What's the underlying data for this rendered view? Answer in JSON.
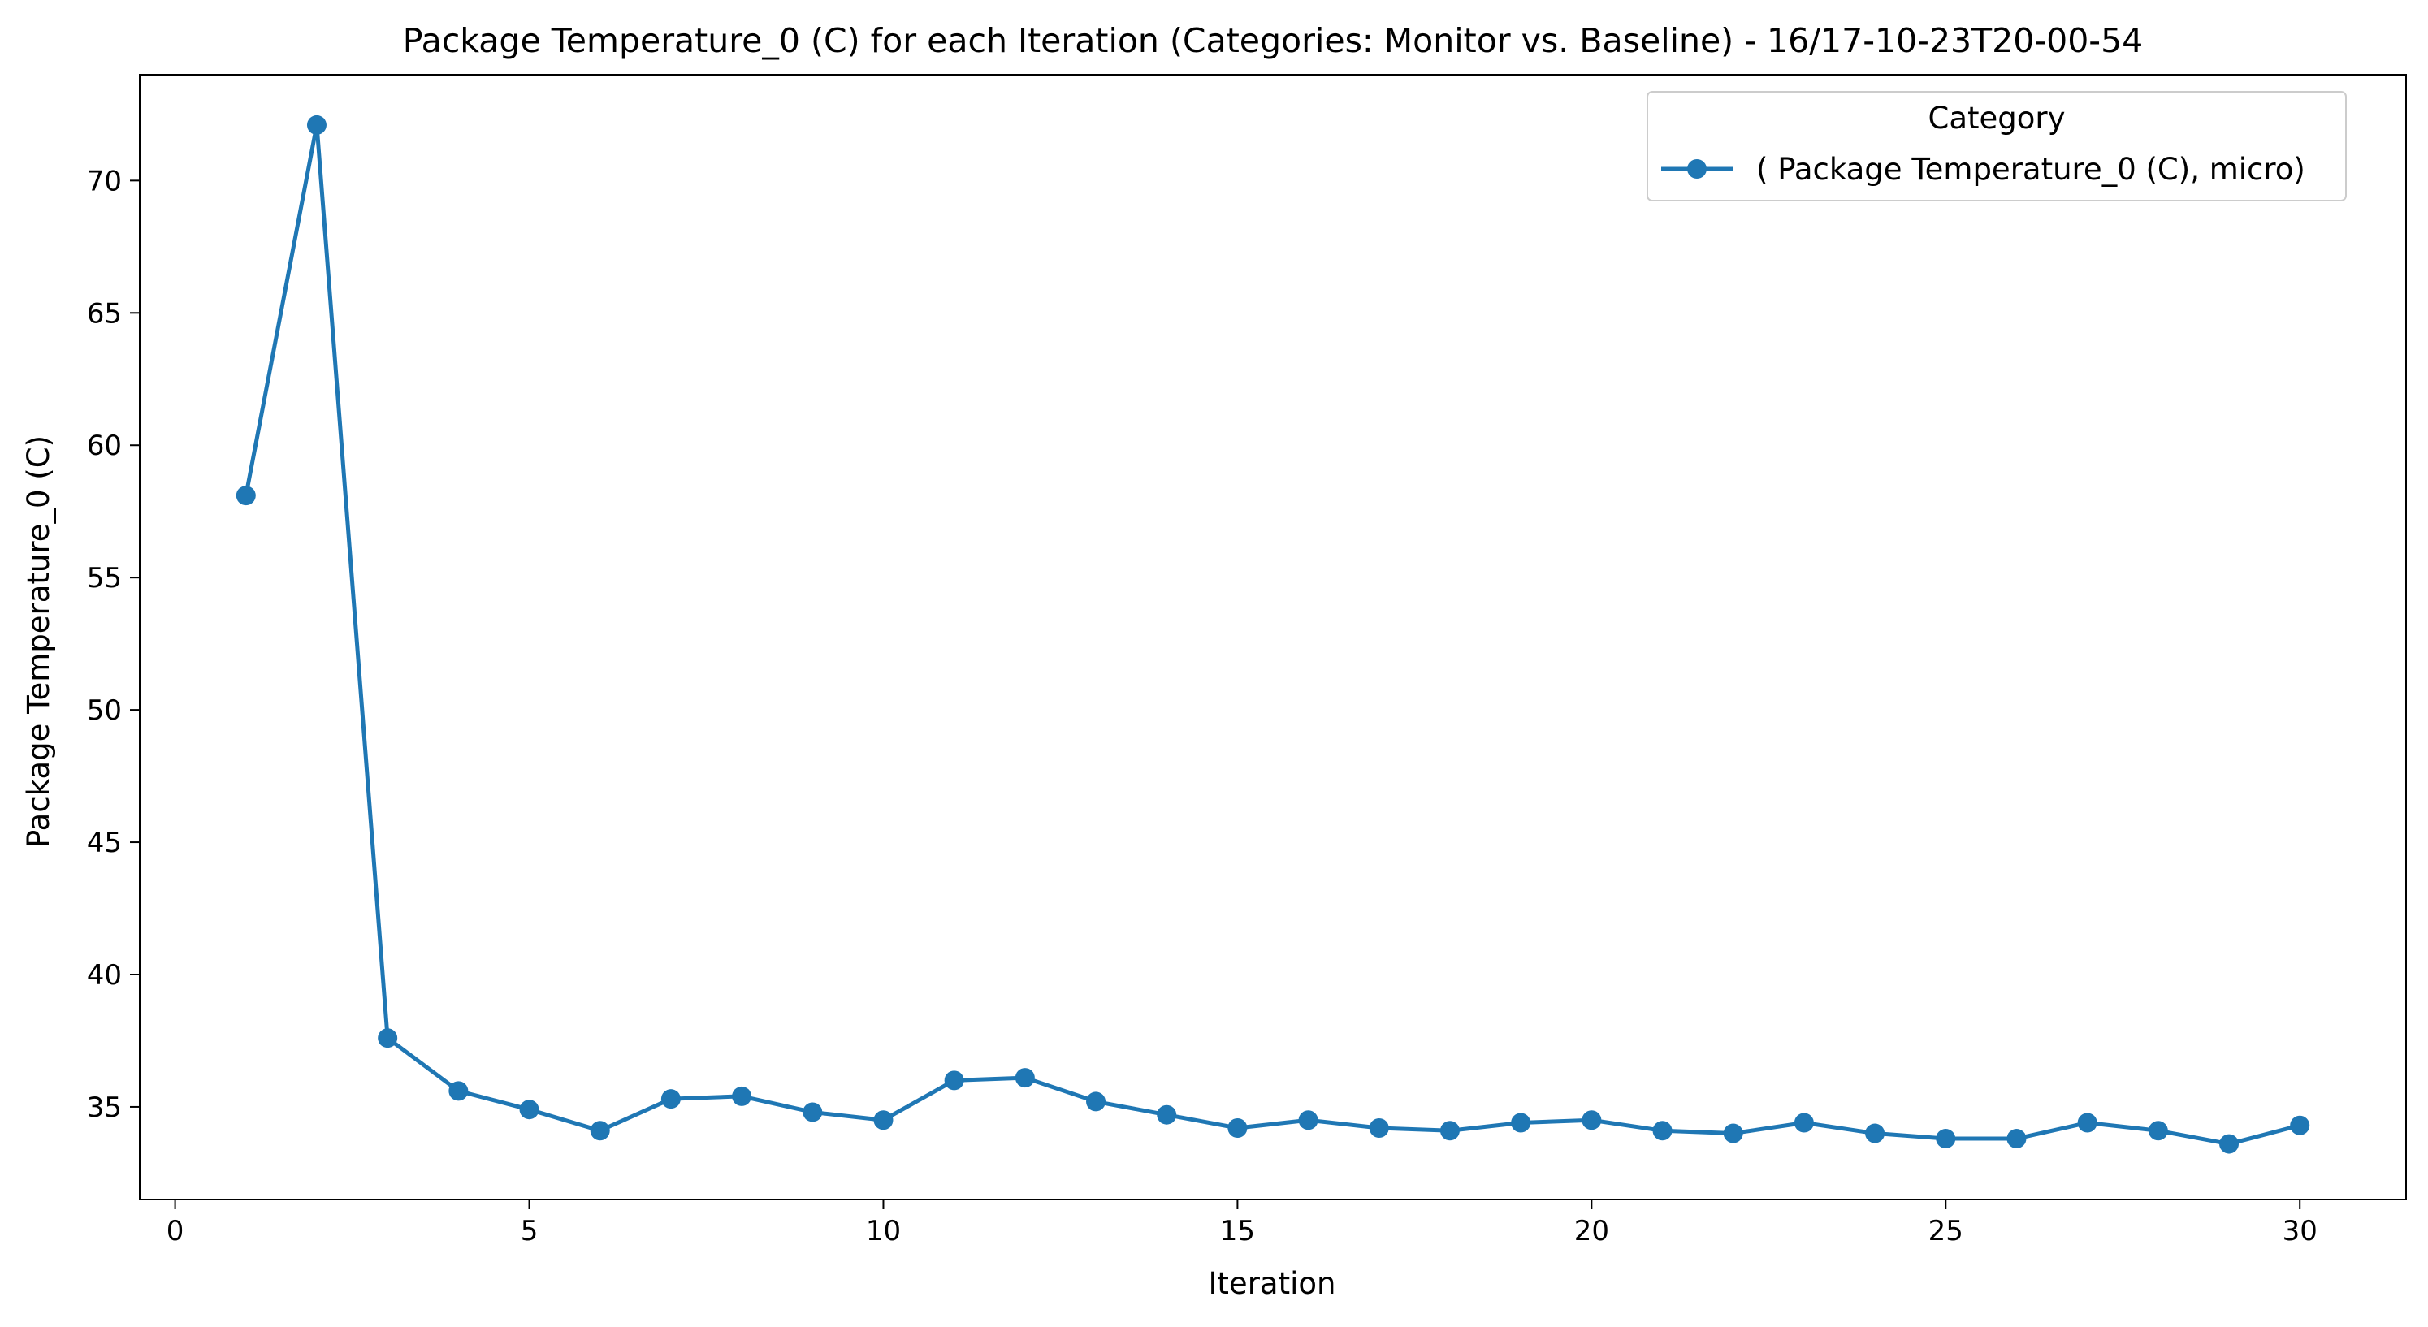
{
  "chart_data": {
    "type": "line",
    "title": "Package Temperature_0 (C) for each Iteration (Categories: Monitor vs. Baseline) - 16/17-10-23T20-00-54",
    "xlabel": "Iteration",
    "ylabel": "Package Temperature_0 (C)",
    "xlim": [
      -0.5,
      31.5
    ],
    "ylim": [
      31.5,
      74.0
    ],
    "xticks": [
      0,
      5,
      10,
      15,
      20,
      25,
      30
    ],
    "yticks": [
      35,
      40,
      45,
      50,
      55,
      60,
      65,
      70
    ],
    "grid": false,
    "legend": {
      "title": "Category",
      "placement": "top-right"
    },
    "series": [
      {
        "name": "( Package Temperature_0 (C), micro)",
        "color": "#1f77b4",
        "marker": "circle",
        "x": [
          1,
          2,
          3,
          4,
          5,
          6,
          7,
          8,
          9,
          10,
          11,
          12,
          13,
          14,
          15,
          16,
          17,
          18,
          19,
          20,
          21,
          22,
          23,
          24,
          25,
          26,
          27,
          28,
          29,
          30
        ],
        "y": [
          58.1,
          72.1,
          37.6,
          35.6,
          34.9,
          34.1,
          35.3,
          35.4,
          34.8,
          34.5,
          36.0,
          36.1,
          35.2,
          34.7,
          34.2,
          34.5,
          34.2,
          34.1,
          34.4,
          34.5,
          34.1,
          34.0,
          34.4,
          34.0,
          33.8,
          33.8,
          34.4,
          34.1,
          33.6,
          34.3
        ]
      }
    ]
  }
}
